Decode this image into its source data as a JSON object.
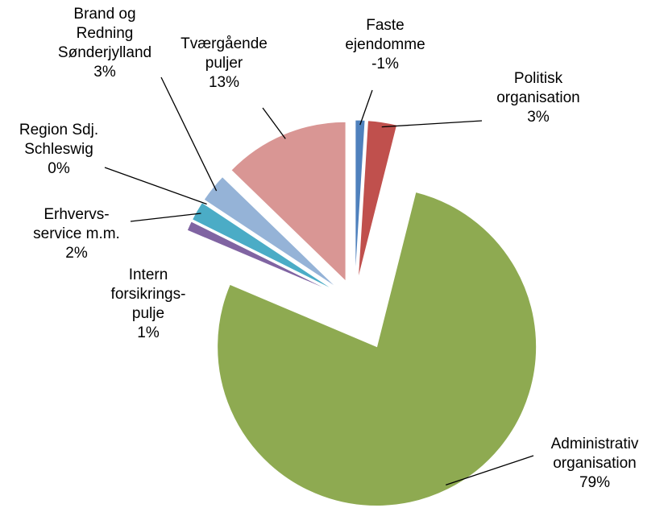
{
  "chart_data": {
    "type": "pie",
    "categories": [
      "Faste\nejendomme",
      "Politisk\norganisation",
      "Administrativ\norganisation",
      "Intern\nforsikrings-\npulje",
      "Erhvervs-\nservice m.m.",
      "Region Sdj.\nSchleswig",
      "Brand og\nRedning\nSønderjylland",
      "Tværgående\npuljer"
    ],
    "values": [
      -1,
      3,
      79,
      1,
      2,
      0,
      3,
      13
    ],
    "value_labels": [
      "-1%",
      "3%",
      "79%",
      "1%",
      "2%",
      "0%",
      "3%",
      "13%"
    ],
    "colors": [
      "#4f81bd",
      "#c0504d",
      "#8eaa51",
      "#8064a2",
      "#4bacc6",
      "#f79646",
      "#95b3d7",
      "#d99694"
    ]
  }
}
